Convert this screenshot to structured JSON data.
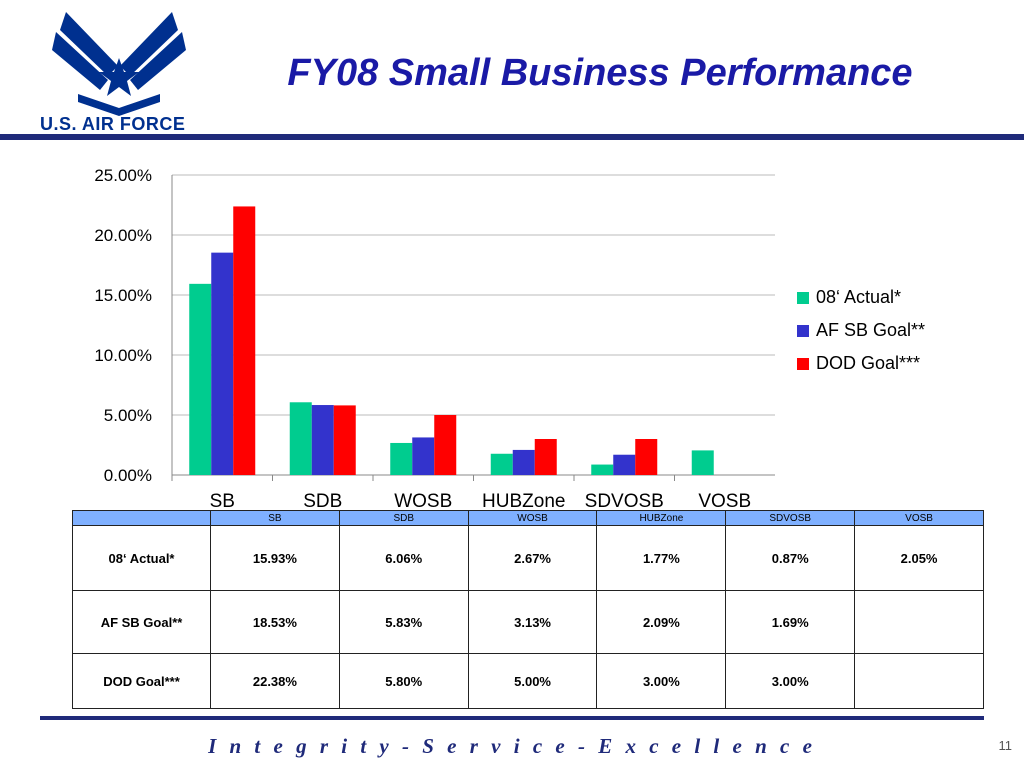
{
  "logo": {
    "text": "U.S. AIR FORCE"
  },
  "title": "FY08 Small Business Performance",
  "chart_data": {
    "type": "bar",
    "categories": [
      "SB",
      "SDB",
      "WOSB",
      "HUBZone",
      "SDVOSB",
      "VOSB"
    ],
    "series": [
      {
        "name": "08‘ Actual*",
        "color": "#00cc8f",
        "values": [
          15.93,
          6.06,
          2.67,
          1.77,
          0.87,
          2.05
        ]
      },
      {
        "name": "AF SB Goal**",
        "color": "#3333cc",
        "values": [
          18.53,
          5.83,
          3.13,
          2.09,
          1.69,
          null
        ]
      },
      {
        "name": "DOD Goal***",
        "color": "#ff0000",
        "values": [
          22.38,
          5.8,
          5.0,
          3.0,
          3.0,
          null
        ]
      }
    ],
    "ylim": [
      0,
      25
    ],
    "yticks": [
      "0.00%",
      "5.00%",
      "10.00%",
      "15.00%",
      "20.00%",
      "25.00%"
    ],
    "grid": true,
    "legend": "right"
  },
  "table": {
    "headers": [
      "",
      "SB",
      "SDB",
      "WOSB",
      "HUBZone",
      "SDVOSB",
      "VOSB"
    ],
    "rows": [
      [
        "08‘ Actual*",
        "15.93%",
        "6.06%",
        "2.67%",
        "1.77%",
        "0.87%",
        "2.05%"
      ],
      [
        "AF SB Goal**",
        "18.53%",
        "5.83%",
        "3.13%",
        "2.09%",
        "1.69%",
        ""
      ],
      [
        "DOD Goal***",
        "22.38%",
        "5.80%",
        "5.00%",
        "3.00%",
        "3.00%",
        ""
      ]
    ]
  },
  "footer": "I n t e g r i t y - S e r v i c e - E x c e l l e n c e",
  "page_number": "11"
}
